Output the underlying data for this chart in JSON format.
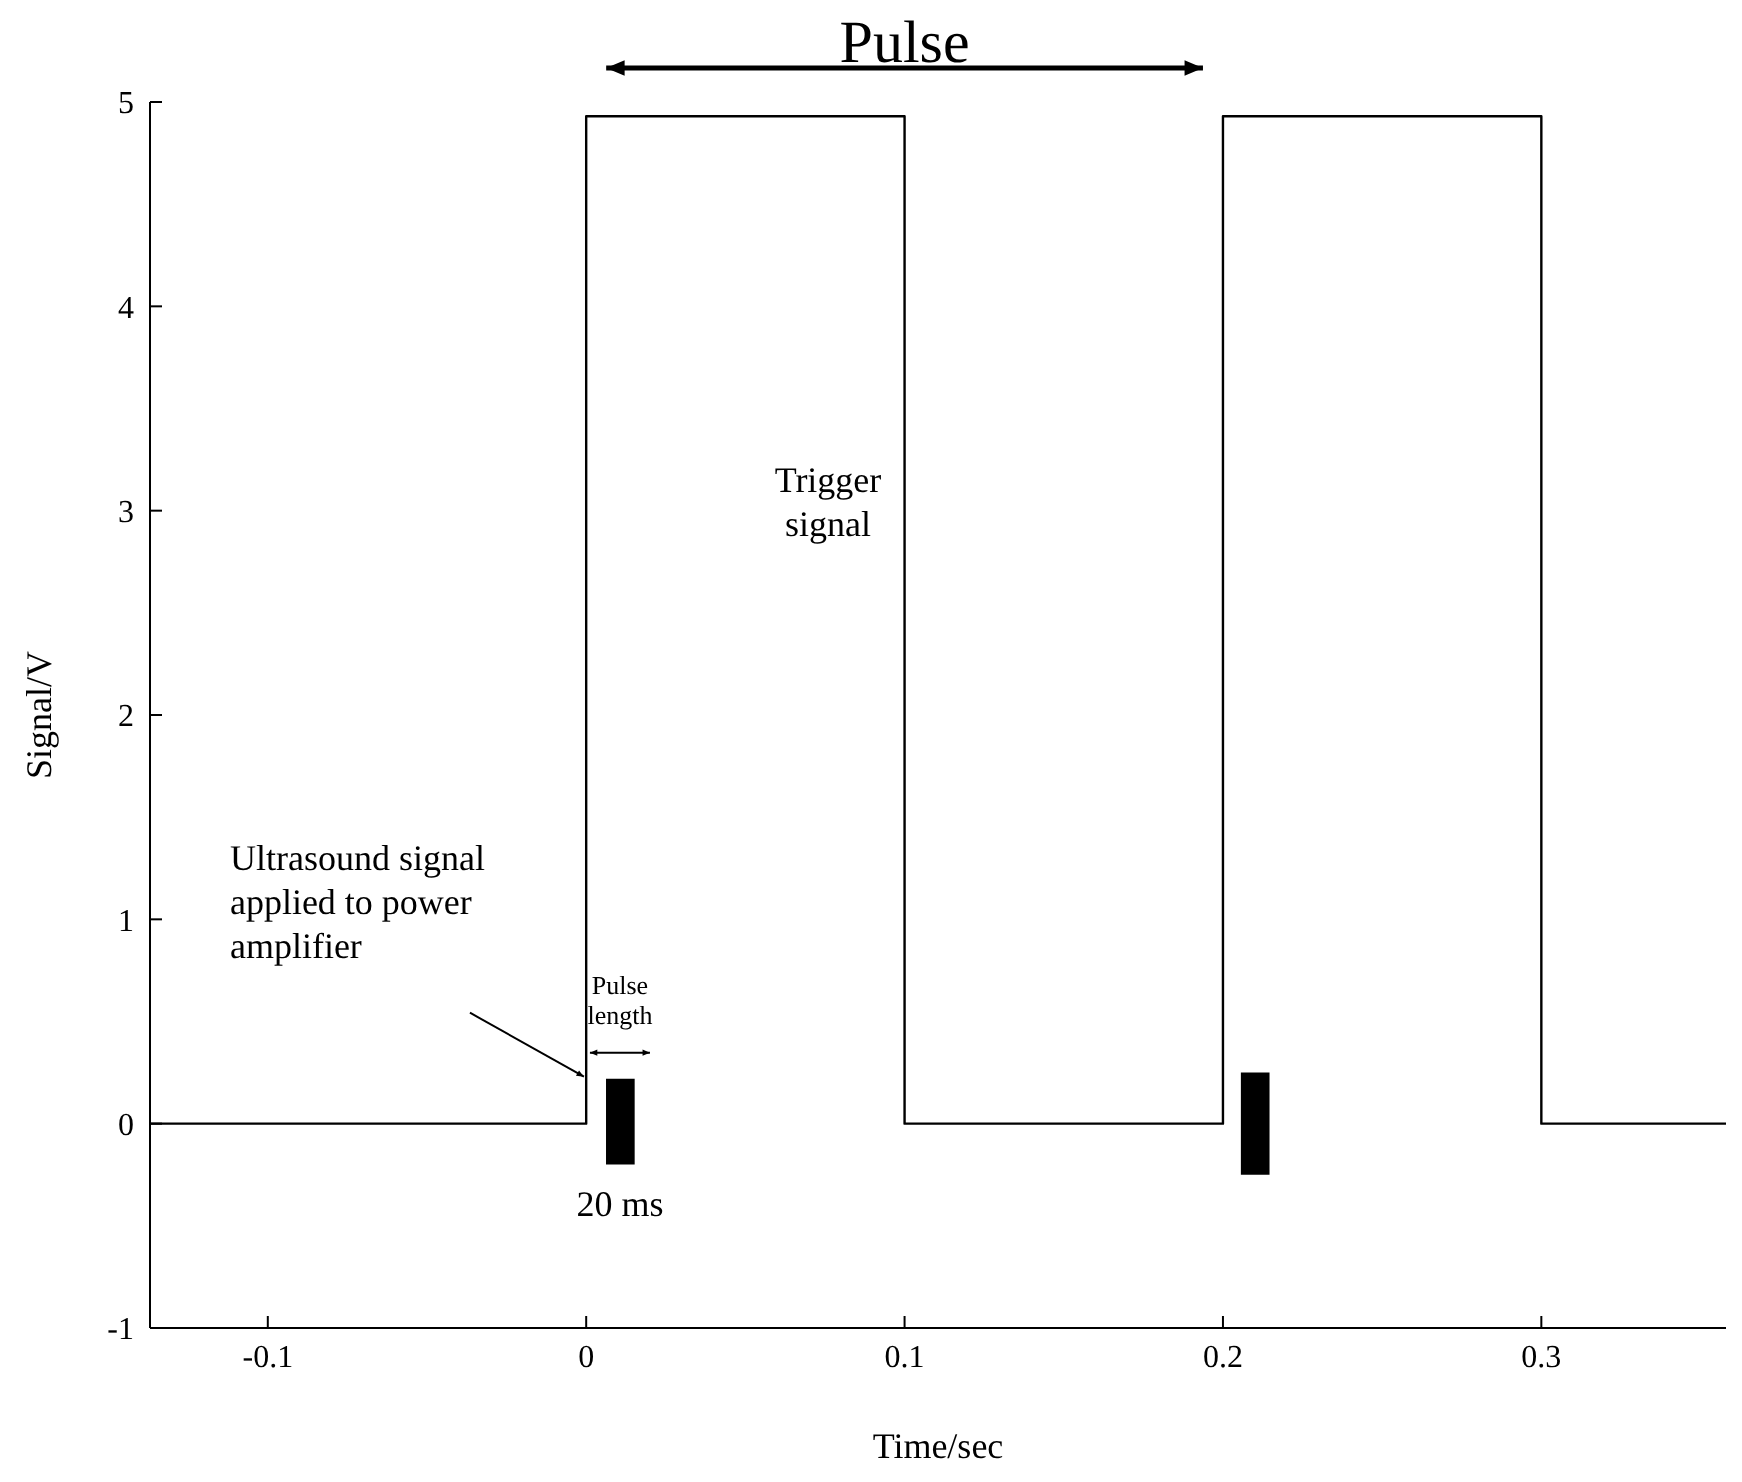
{
  "chart_data": {
    "type": "step",
    "xlabel": "Time/sec",
    "ylabel": "Signal/V",
    "xlim": [
      -0.137,
      0.358
    ],
    "xticks": [
      -0.1,
      0,
      0.1,
      0.2,
      0.3
    ],
    "ylim": [
      -1,
      5
    ],
    "yticks": [
      -1,
      0,
      1,
      2,
      3,
      4,
      5
    ],
    "grid": false,
    "legend": false,
    "series": [
      {
        "type": "step",
        "color": "#000000",
        "x": [
          -0.137,
          0,
          0.1,
          0.2,
          0.3,
          0.358
        ],
        "values": [
          0,
          4.93,
          0,
          4.93,
          0,
          0
        ]
      },
      {
        "type": "bar",
        "color": "#000000",
        "x": [
          0.0106,
          0.21
        ],
        "base": [
          -0.2,
          -0.25
        ],
        "values": [
          0.42,
          0.5
        ]
      }
    ],
    "annotations": [
      "Pulse",
      "Trigger signal",
      "Ultrasound signal applied to power amplifier",
      "Pulse length",
      "20 ms"
    ]
  }
}
